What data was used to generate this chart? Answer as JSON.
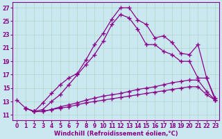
{
  "xlabel": "Windchill (Refroidissement éolien,°C)",
  "background_color": "#cbe8f0",
  "grid_color": "#b0d4c8",
  "line_color": "#880088",
  "xlim": [
    -0.5,
    23.5
  ],
  "ylim": [
    10.2,
    27.8
  ],
  "yticks": [
    11,
    13,
    15,
    17,
    19,
    21,
    23,
    25,
    27
  ],
  "xticks": [
    0,
    1,
    2,
    3,
    4,
    5,
    6,
    7,
    8,
    9,
    10,
    11,
    12,
    13,
    14,
    15,
    16,
    17,
    18,
    19,
    20,
    21,
    22,
    23
  ],
  "curve1_x": [
    0,
    1,
    2,
    3,
    4,
    5,
    6,
    7,
    8,
    9,
    10,
    11,
    12,
    13,
    14,
    15,
    16,
    17,
    18,
    19,
    20,
    21,
    22,
    23
  ],
  "curve1_y": [
    13.2,
    12.0,
    11.5,
    12.8,
    14.2,
    15.5,
    16.5,
    17.2,
    19.2,
    21.5,
    23.2,
    25.3,
    27.0,
    27.0,
    25.2,
    24.5,
    22.5,
    22.8,
    21.8,
    20.2,
    20.0,
    21.5,
    16.5,
    13.2
  ],
  "curve2_x": [
    1,
    2,
    3,
    4,
    5,
    6,
    7,
    8,
    9,
    10,
    11,
    12,
    13,
    14,
    15,
    16,
    17,
    18,
    19,
    20,
    21,
    22,
    23
  ],
  "curve2_y": [
    12.0,
    11.5,
    11.8,
    13.0,
    14.0,
    15.5,
    17.0,
    18.5,
    20.0,
    22.0,
    24.5,
    26.0,
    25.5,
    23.8,
    21.5,
    21.5,
    20.5,
    20.0,
    19.0,
    19.0,
    16.5,
    16.5,
    13.5
  ],
  "curve3_x": [
    1,
    2,
    3,
    4,
    5,
    6,
    7,
    8,
    9,
    10,
    11,
    12,
    13,
    14,
    15,
    16,
    17,
    18,
    19,
    20,
    21,
    22,
    23
  ],
  "curve3_y": [
    12.0,
    11.5,
    11.5,
    11.8,
    12.2,
    12.5,
    12.8,
    13.2,
    13.5,
    13.8,
    14.0,
    14.2,
    14.5,
    14.8,
    15.0,
    15.2,
    15.5,
    15.8,
    16.0,
    16.2,
    16.2,
    14.5,
    13.2
  ],
  "curve4_x": [
    1,
    2,
    3,
    4,
    5,
    6,
    7,
    8,
    9,
    10,
    11,
    12,
    13,
    14,
    15,
    16,
    17,
    18,
    19,
    20,
    21,
    22,
    23
  ],
  "curve4_y": [
    12.0,
    11.5,
    11.5,
    11.8,
    12.0,
    12.2,
    12.5,
    12.8,
    13.0,
    13.2,
    13.4,
    13.6,
    13.8,
    14.0,
    14.2,
    14.4,
    14.6,
    14.8,
    15.0,
    15.2,
    15.2,
    14.0,
    13.2
  ],
  "marker": "+",
  "markersize": 4,
  "linewidth": 0.9,
  "fontsize_ticks": 5.5,
  "fontsize_label": 6.0
}
